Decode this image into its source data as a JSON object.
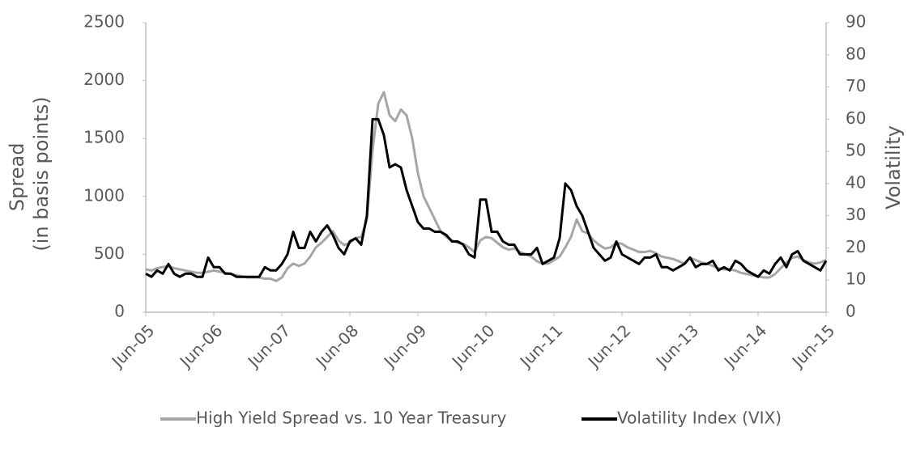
{
  "chart_data": {
    "type": "line",
    "ylabel": [
      "Spread",
      "(in basis points)"
    ],
    "y2label": "Volatility",
    "categories": [
      "Jun-05",
      null,
      null,
      null,
      null,
      null,
      null,
      null,
      null,
      null,
      null,
      null,
      "Jun-06",
      null,
      null,
      null,
      null,
      null,
      null,
      null,
      null,
      null,
      null,
      null,
      "Jun-07",
      null,
      null,
      null,
      null,
      null,
      null,
      null,
      null,
      null,
      null,
      null,
      "Jun-08",
      null,
      null,
      null,
      null,
      null,
      null,
      null,
      null,
      null,
      null,
      null,
      "Jun-09",
      null,
      null,
      null,
      null,
      null,
      null,
      null,
      null,
      null,
      null,
      null,
      "Jun-10",
      null,
      null,
      null,
      null,
      null,
      null,
      null,
      null,
      null,
      null,
      null,
      "Jun-11",
      null,
      null,
      null,
      null,
      null,
      null,
      null,
      null,
      null,
      null,
      null,
      "Jun-12",
      null,
      null,
      null,
      null,
      null,
      null,
      null,
      null,
      null,
      null,
      null,
      "Jun-13",
      null,
      null,
      null,
      null,
      null,
      null,
      null,
      null,
      null,
      null,
      null,
      "Jun-14",
      null,
      null,
      null,
      null,
      null,
      null,
      null,
      null,
      null,
      null,
      null,
      "Jun-15"
    ],
    "series": [
      {
        "name": "High Yield Spread vs. 10 Year Treasury",
        "color": "#a6a6a6",
        "axis": "y",
        "values": [
          370,
          360,
          380,
          390,
          400,
          380,
          370,
          360,
          350,
          340,
          340,
          350,
          360,
          350,
          340,
          330,
          320,
          310,
          300,
          300,
          300,
          290,
          290,
          270,
          300,
          380,
          420,
          400,
          420,
          480,
          560,
          600,
          650,
          700,
          620,
          580,
          600,
          640,
          650,
          800,
          1400,
          1800,
          1900,
          1700,
          1650,
          1750,
          1700,
          1500,
          1200,
          1000,
          900,
          800,
          700,
          650,
          620,
          600,
          590,
          560,
          520,
          620,
          650,
          640,
          600,
          560,
          540,
          550,
          520,
          500,
          480,
          440,
          420,
          420,
          450,
          480,
          560,
          650,
          800,
          700,
          680,
          620,
          580,
          550,
          560,
          600,
          590,
          560,
          540,
          520,
          520,
          530,
          510,
          480,
          470,
          460,
          440,
          420,
          470,
          450,
          430,
          420,
          400,
          380,
          370,
          370,
          360,
          340,
          330,
          320,
          310,
          300,
          300,
          330,
          380,
          430,
          470,
          480,
          450,
          430,
          420,
          430,
          450
        ]
      },
      {
        "name": "Volatility Index (VIX)",
        "color": "#000000",
        "axis": "y2",
        "values": [
          12,
          11,
          13,
          12,
          15,
          12,
          11,
          12,
          12,
          11,
          11,
          17,
          14,
          14,
          12,
          12,
          11,
          11,
          11,
          11,
          11,
          14,
          13,
          13,
          15,
          18,
          25,
          20,
          20,
          25,
          22,
          25,
          27,
          24,
          20,
          18,
          22,
          23,
          21,
          30,
          60,
          60,
          55,
          45,
          46,
          45,
          38,
          33,
          28,
          26,
          26,
          25,
          25,
          24,
          22,
          22,
          21,
          18,
          17,
          35,
          35,
          25,
          25,
          22,
          21,
          21,
          18,
          18,
          18,
          20,
          15,
          16,
          17,
          23,
          40,
          38,
          33,
          30,
          25,
          20,
          18,
          16,
          17,
          22,
          18,
          17,
          16,
          15,
          17,
          17,
          18,
          14,
          14,
          13,
          14,
          15,
          17,
          14,
          15,
          15,
          16,
          13,
          14,
          13,
          16,
          15,
          13,
          12,
          11,
          13,
          12,
          15,
          17,
          14,
          18,
          19,
          16,
          15,
          14,
          13,
          16
        ]
      }
    ],
    "ylim": [
      0,
      2500
    ],
    "yticks": [
      0,
      500,
      1000,
      1500,
      2000,
      2500
    ],
    "y2lim": [
      0,
      90
    ],
    "y2ticks": [
      0,
      10,
      20,
      30,
      40,
      50,
      60,
      70,
      80,
      90
    ],
    "grid": false,
    "legend": "bottom"
  }
}
